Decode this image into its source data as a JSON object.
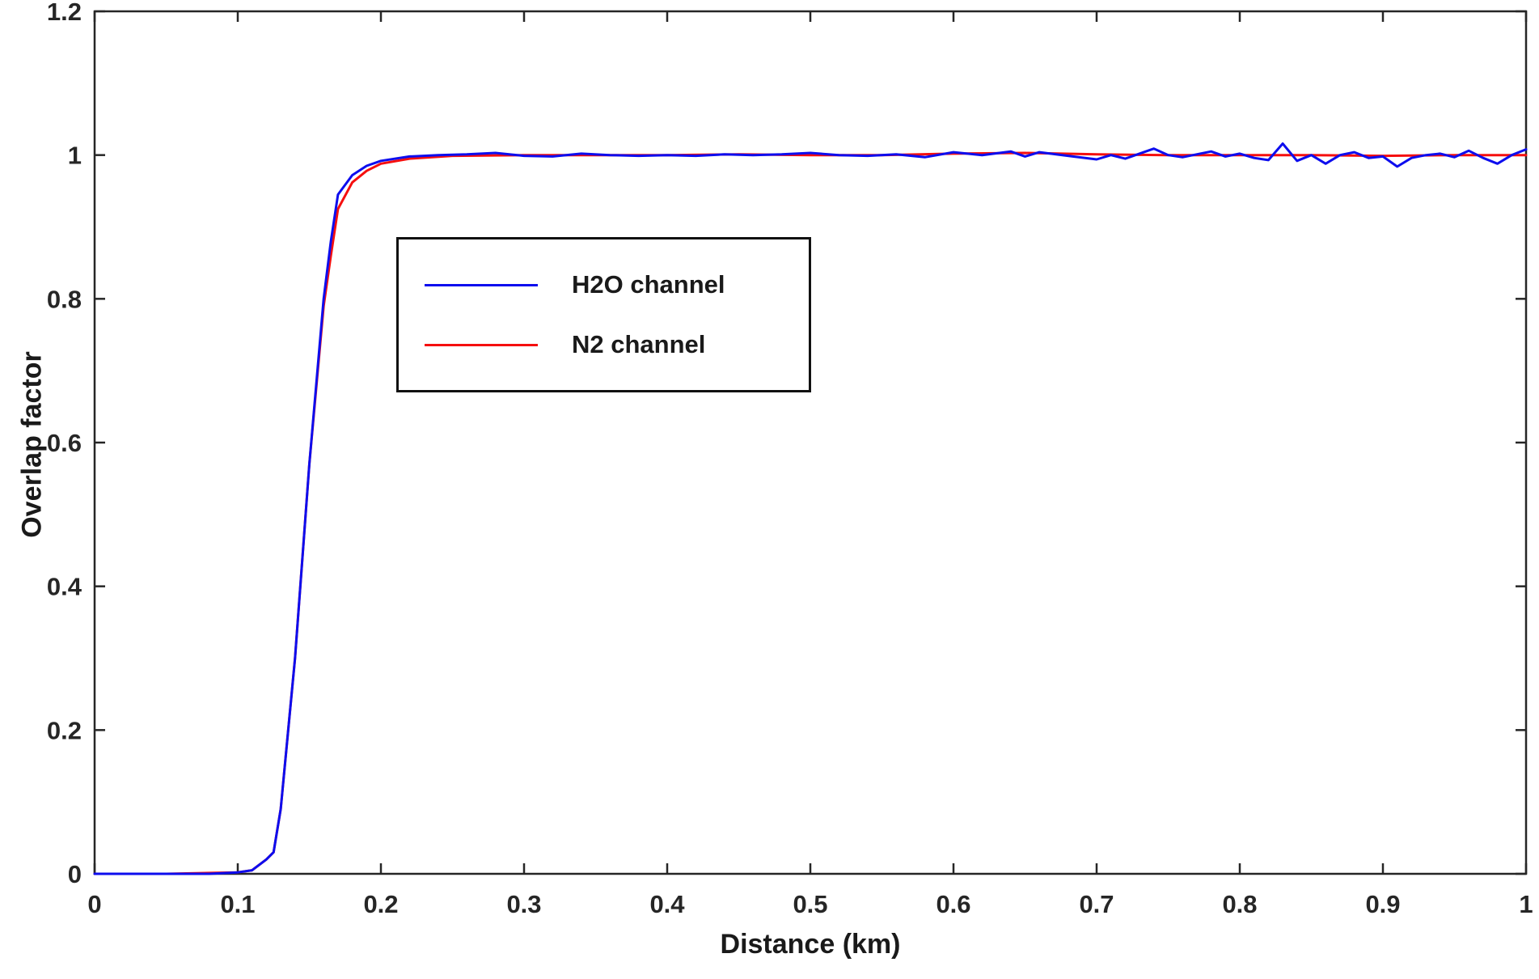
{
  "colors": {
    "axis": "#262626",
    "background": "#ffffff",
    "h2o_line": "#0d0dee",
    "n2_line": "#f50f0f"
  },
  "legend": {
    "items": [
      {
        "label": "H2O channel"
      },
      {
        "label": "N2 channel"
      }
    ]
  },
  "chart_data": {
    "type": "line",
    "title": "",
    "xlabel": "Distance (km)",
    "ylabel": "Overlap factor",
    "xlim": [
      0,
      1
    ],
    "ylim": [
      0,
      1.2
    ],
    "grid": false,
    "legend_position": "upper-center-left",
    "xticks": {
      "values": [
        0,
        0.1,
        0.2,
        0.3,
        0.4,
        0.5,
        0.6,
        0.7,
        0.8,
        0.9,
        1
      ],
      "labels": [
        "0",
        "0.1",
        "0.2",
        "0.3",
        "0.4",
        "0.5",
        "0.6",
        "0.7",
        "0.8",
        "0.9",
        "1"
      ]
    },
    "yticks": {
      "values": [
        0,
        0.2,
        0.4,
        0.6,
        0.8,
        1,
        1.2
      ],
      "labels": [
        "0",
        "0.2",
        "0.4",
        "0.6",
        "0.8",
        "1",
        "1.2"
      ]
    },
    "series": [
      {
        "name": "N2 channel",
        "color": "#f50f0f",
        "x": [
          0,
          0.05,
          0.1,
          0.11,
          0.12,
          0.125,
          0.13,
          0.14,
          0.15,
          0.16,
          0.165,
          0.17,
          0.18,
          0.19,
          0.2,
          0.22,
          0.25,
          0.3,
          0.35,
          0.4,
          0.45,
          0.5,
          0.55,
          0.6,
          0.65,
          0.7,
          0.75,
          0.8,
          0.85,
          0.9,
          0.95,
          1.0
        ],
        "y": [
          0,
          0,
          0.002,
          0.005,
          0.02,
          0.03,
          0.09,
          0.3,
          0.57,
          0.79,
          0.86,
          0.925,
          0.962,
          0.978,
          0.988,
          0.995,
          0.999,
          1.0,
          1.0,
          1.0,
          1.001,
          1.0,
          1.0,
          1.002,
          1.003,
          1.001,
          1.0,
          1.0,
          1.0,
          0.999,
          1.0,
          1.0
        ]
      },
      {
        "name": "H2O channel",
        "color": "#0d0dee",
        "x": [
          0,
          0.02,
          0.04,
          0.06,
          0.08,
          0.1,
          0.11,
          0.12,
          0.125,
          0.13,
          0.14,
          0.15,
          0.16,
          0.165,
          0.17,
          0.18,
          0.19,
          0.2,
          0.22,
          0.24,
          0.26,
          0.28,
          0.3,
          0.32,
          0.34,
          0.36,
          0.38,
          0.4,
          0.42,
          0.44,
          0.46,
          0.48,
          0.5,
          0.52,
          0.54,
          0.56,
          0.58,
          0.6,
          0.62,
          0.64,
          0.65,
          0.66,
          0.68,
          0.7,
          0.71,
          0.72,
          0.74,
          0.75,
          0.76,
          0.78,
          0.79,
          0.8,
          0.81,
          0.82,
          0.83,
          0.84,
          0.85,
          0.86,
          0.87,
          0.88,
          0.89,
          0.9,
          0.91,
          0.92,
          0.93,
          0.94,
          0.95,
          0.96,
          0.97,
          0.98,
          0.99,
          1.0
        ],
        "y": [
          0,
          0,
          0,
          0,
          0,
          0.002,
          0.005,
          0.02,
          0.03,
          0.09,
          0.3,
          0.57,
          0.8,
          0.88,
          0.945,
          0.972,
          0.985,
          0.992,
          0.998,
          1.0,
          1.001,
          1.003,
          0.999,
          0.998,
          1.002,
          1.0,
          0.999,
          1.0,
          0.999,
          1.001,
          1.0,
          1.001,
          1.003,
          1.0,
          0.999,
          1.001,
          0.997,
          1.004,
          1.0,
          1.005,
          0.998,
          1.004,
          0.999,
          0.994,
          1.0,
          0.995,
          1.009,
          1.0,
          0.997,
          1.005,
          0.998,
          1.002,
          0.996,
          0.993,
          1.016,
          0.992,
          1.0,
          0.988,
          1.0,
          1.004,
          0.996,
          0.998,
          0.984,
          0.996,
          1.0,
          1.002,
          0.997,
          1.006,
          0.996,
          0.988,
          1.0,
          1.008
        ]
      }
    ]
  }
}
